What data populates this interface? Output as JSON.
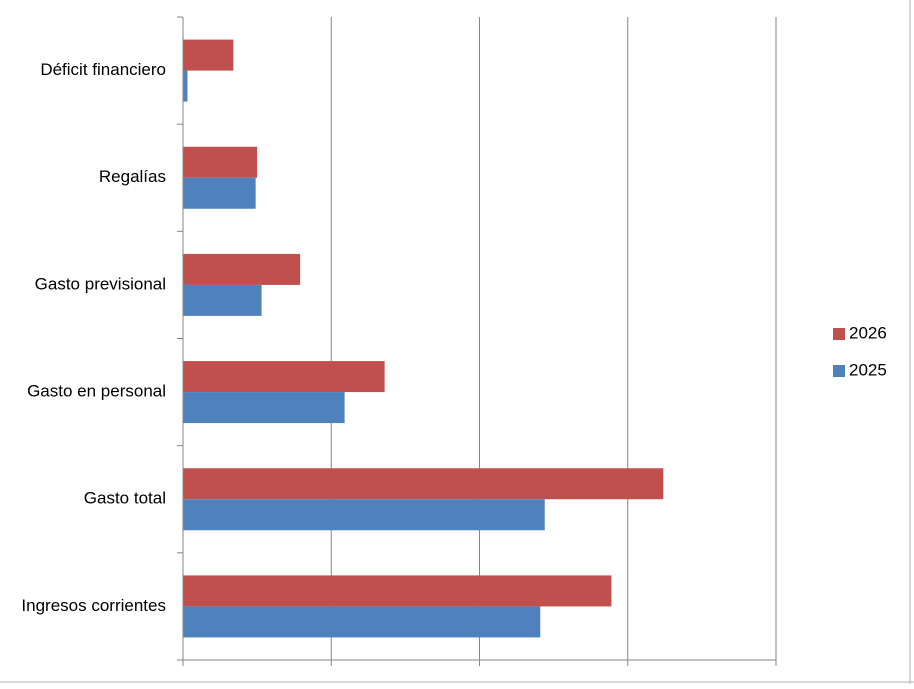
{
  "chart_data": {
    "type": "bar",
    "orientation": "horizontal",
    "categories": [
      "Déficit financiero",
      "Regalías",
      "Gasto previsional",
      "Gasto en personal",
      "Gasto total",
      "Ingresos corrientes"
    ],
    "series": [
      {
        "name": "2026",
        "color": "#c0504d",
        "values": [
          0.34,
          0.5,
          0.79,
          1.36,
          3.24,
          2.89
        ]
      },
      {
        "name": "2025",
        "color": "#4f81bd",
        "values": [
          0.03,
          0.49,
          0.53,
          1.09,
          2.44,
          2.41
        ]
      }
    ],
    "xlim": [
      0,
      4
    ],
    "xticks": [
      0,
      1,
      2,
      3,
      4
    ],
    "grid": true,
    "legend": "right"
  }
}
